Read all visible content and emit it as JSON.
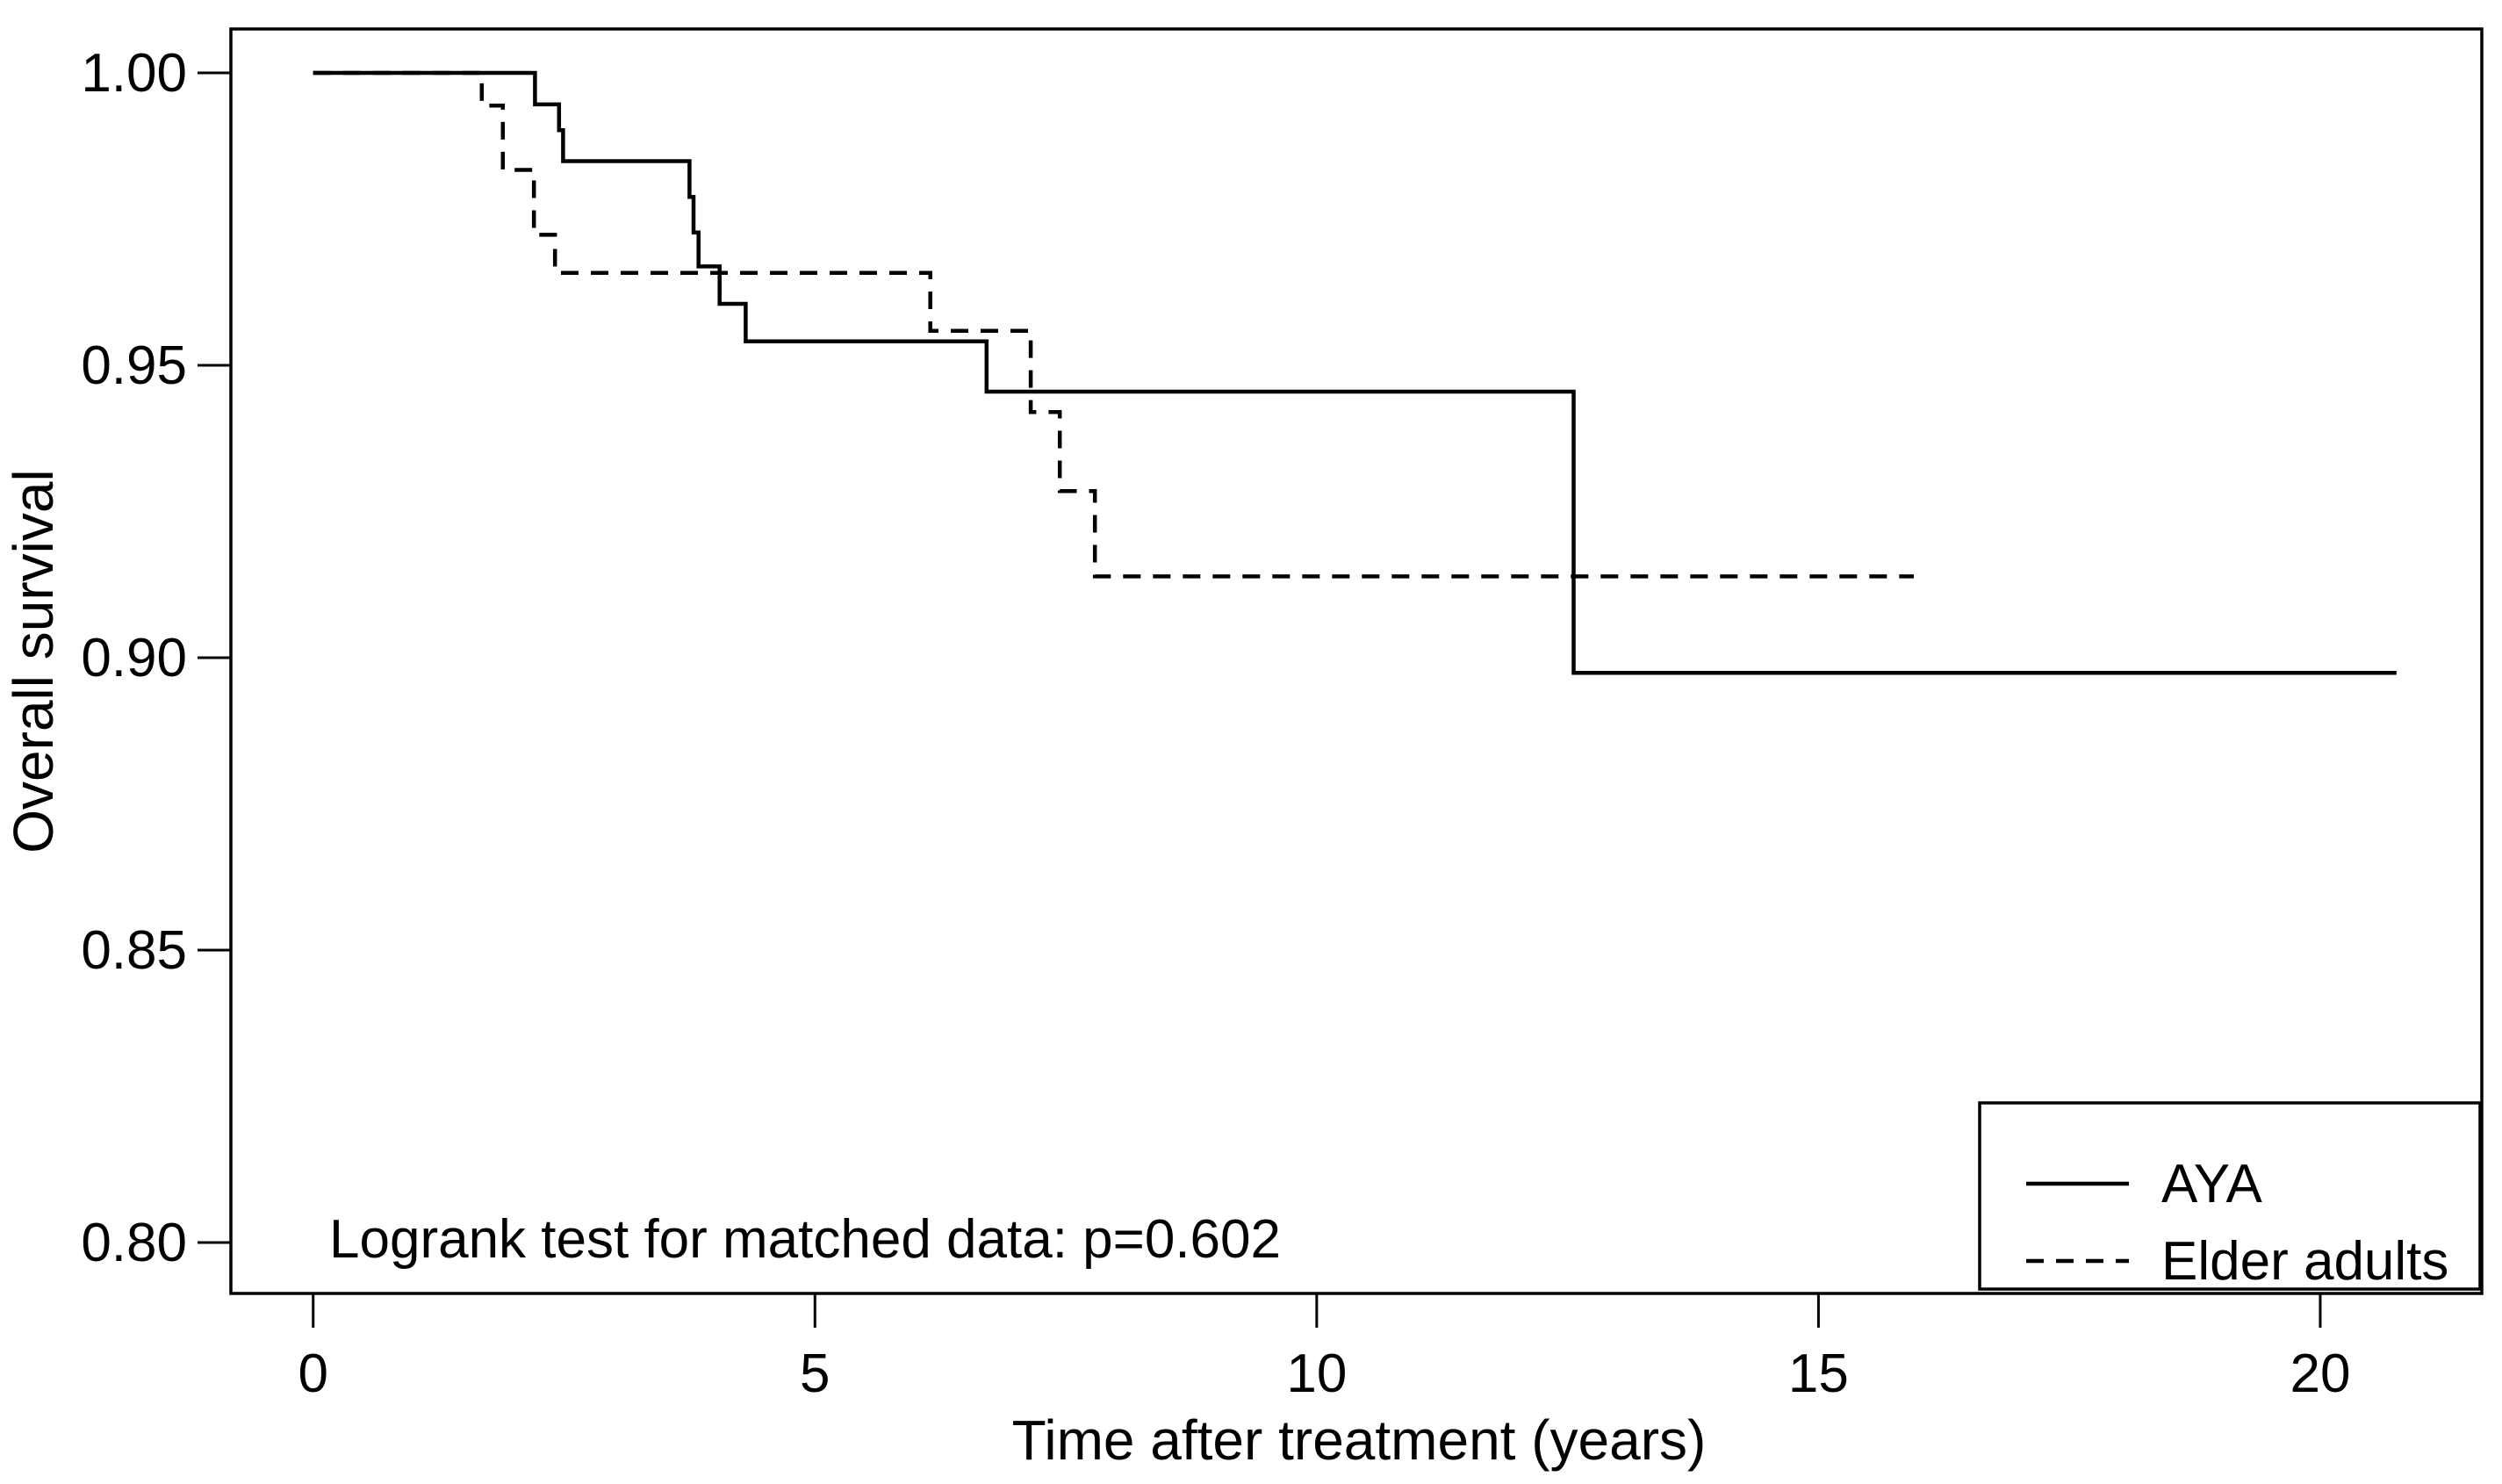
{
  "figure": {
    "background_color": "#ffffff",
    "line_color": "#000000"
  },
  "chart_data": {
    "type": "line",
    "subtype": "kaplan_meier_step",
    "title": "",
    "xlabel": "Time after treatment (years)",
    "ylabel": "Overall survival",
    "annotation": "Logrank test for matched data: p=0.602",
    "grid": false,
    "xlim": [
      -0.82,
      21.61
    ],
    "ylim": [
      0.7913,
      1.0075
    ],
    "x_tick_values": [
      0,
      5,
      10,
      15,
      20
    ],
    "x_tick_labels": [
      "0",
      "5",
      "10",
      "15",
      "20"
    ],
    "y_tick_values": [
      1.0,
      0.95,
      0.9,
      0.85,
      0.8
    ],
    "y_tick_labels": [
      "1.00",
      "0.95",
      "0.90",
      "0.85",
      "0.80"
    ],
    "legend": {
      "position": "bottom-right",
      "entries": [
        {
          "label": "AYA",
          "line_style": "solid"
        },
        {
          "label": "Elder adults",
          "line_style": "dashed"
        }
      ]
    },
    "series": [
      {
        "name": "AYA",
        "line_style": "solid",
        "color": "#000000",
        "steps": [
          [
            0,
            1.0
          ],
          [
            2.21,
            0.9946
          ],
          [
            2.45,
            0.9902
          ],
          [
            2.49,
            0.9849
          ],
          [
            3.75,
            0.9788
          ],
          [
            3.79,
            0.9727
          ],
          [
            3.84,
            0.9669
          ],
          [
            4.05,
            0.9605
          ],
          [
            4.31,
            0.9541
          ],
          [
            6.71,
            0.9455
          ],
          [
            12.56,
            0.8974
          ]
        ],
        "end_time": 20.76
      },
      {
        "name": "Elder adults",
        "line_style": "dashed",
        "color": "#000000",
        "steps": [
          [
            0,
            1.0
          ],
          [
            1.68,
            0.9944
          ],
          [
            1.89,
            0.9834
          ],
          [
            2.2,
            0.9723
          ],
          [
            2.41,
            0.9658
          ],
          [
            6.15,
            0.9559
          ],
          [
            7.15,
            0.942
          ],
          [
            7.44,
            0.9285
          ],
          [
            7.79,
            0.9139
          ]
        ],
        "end_time": 15.95
      }
    ]
  }
}
